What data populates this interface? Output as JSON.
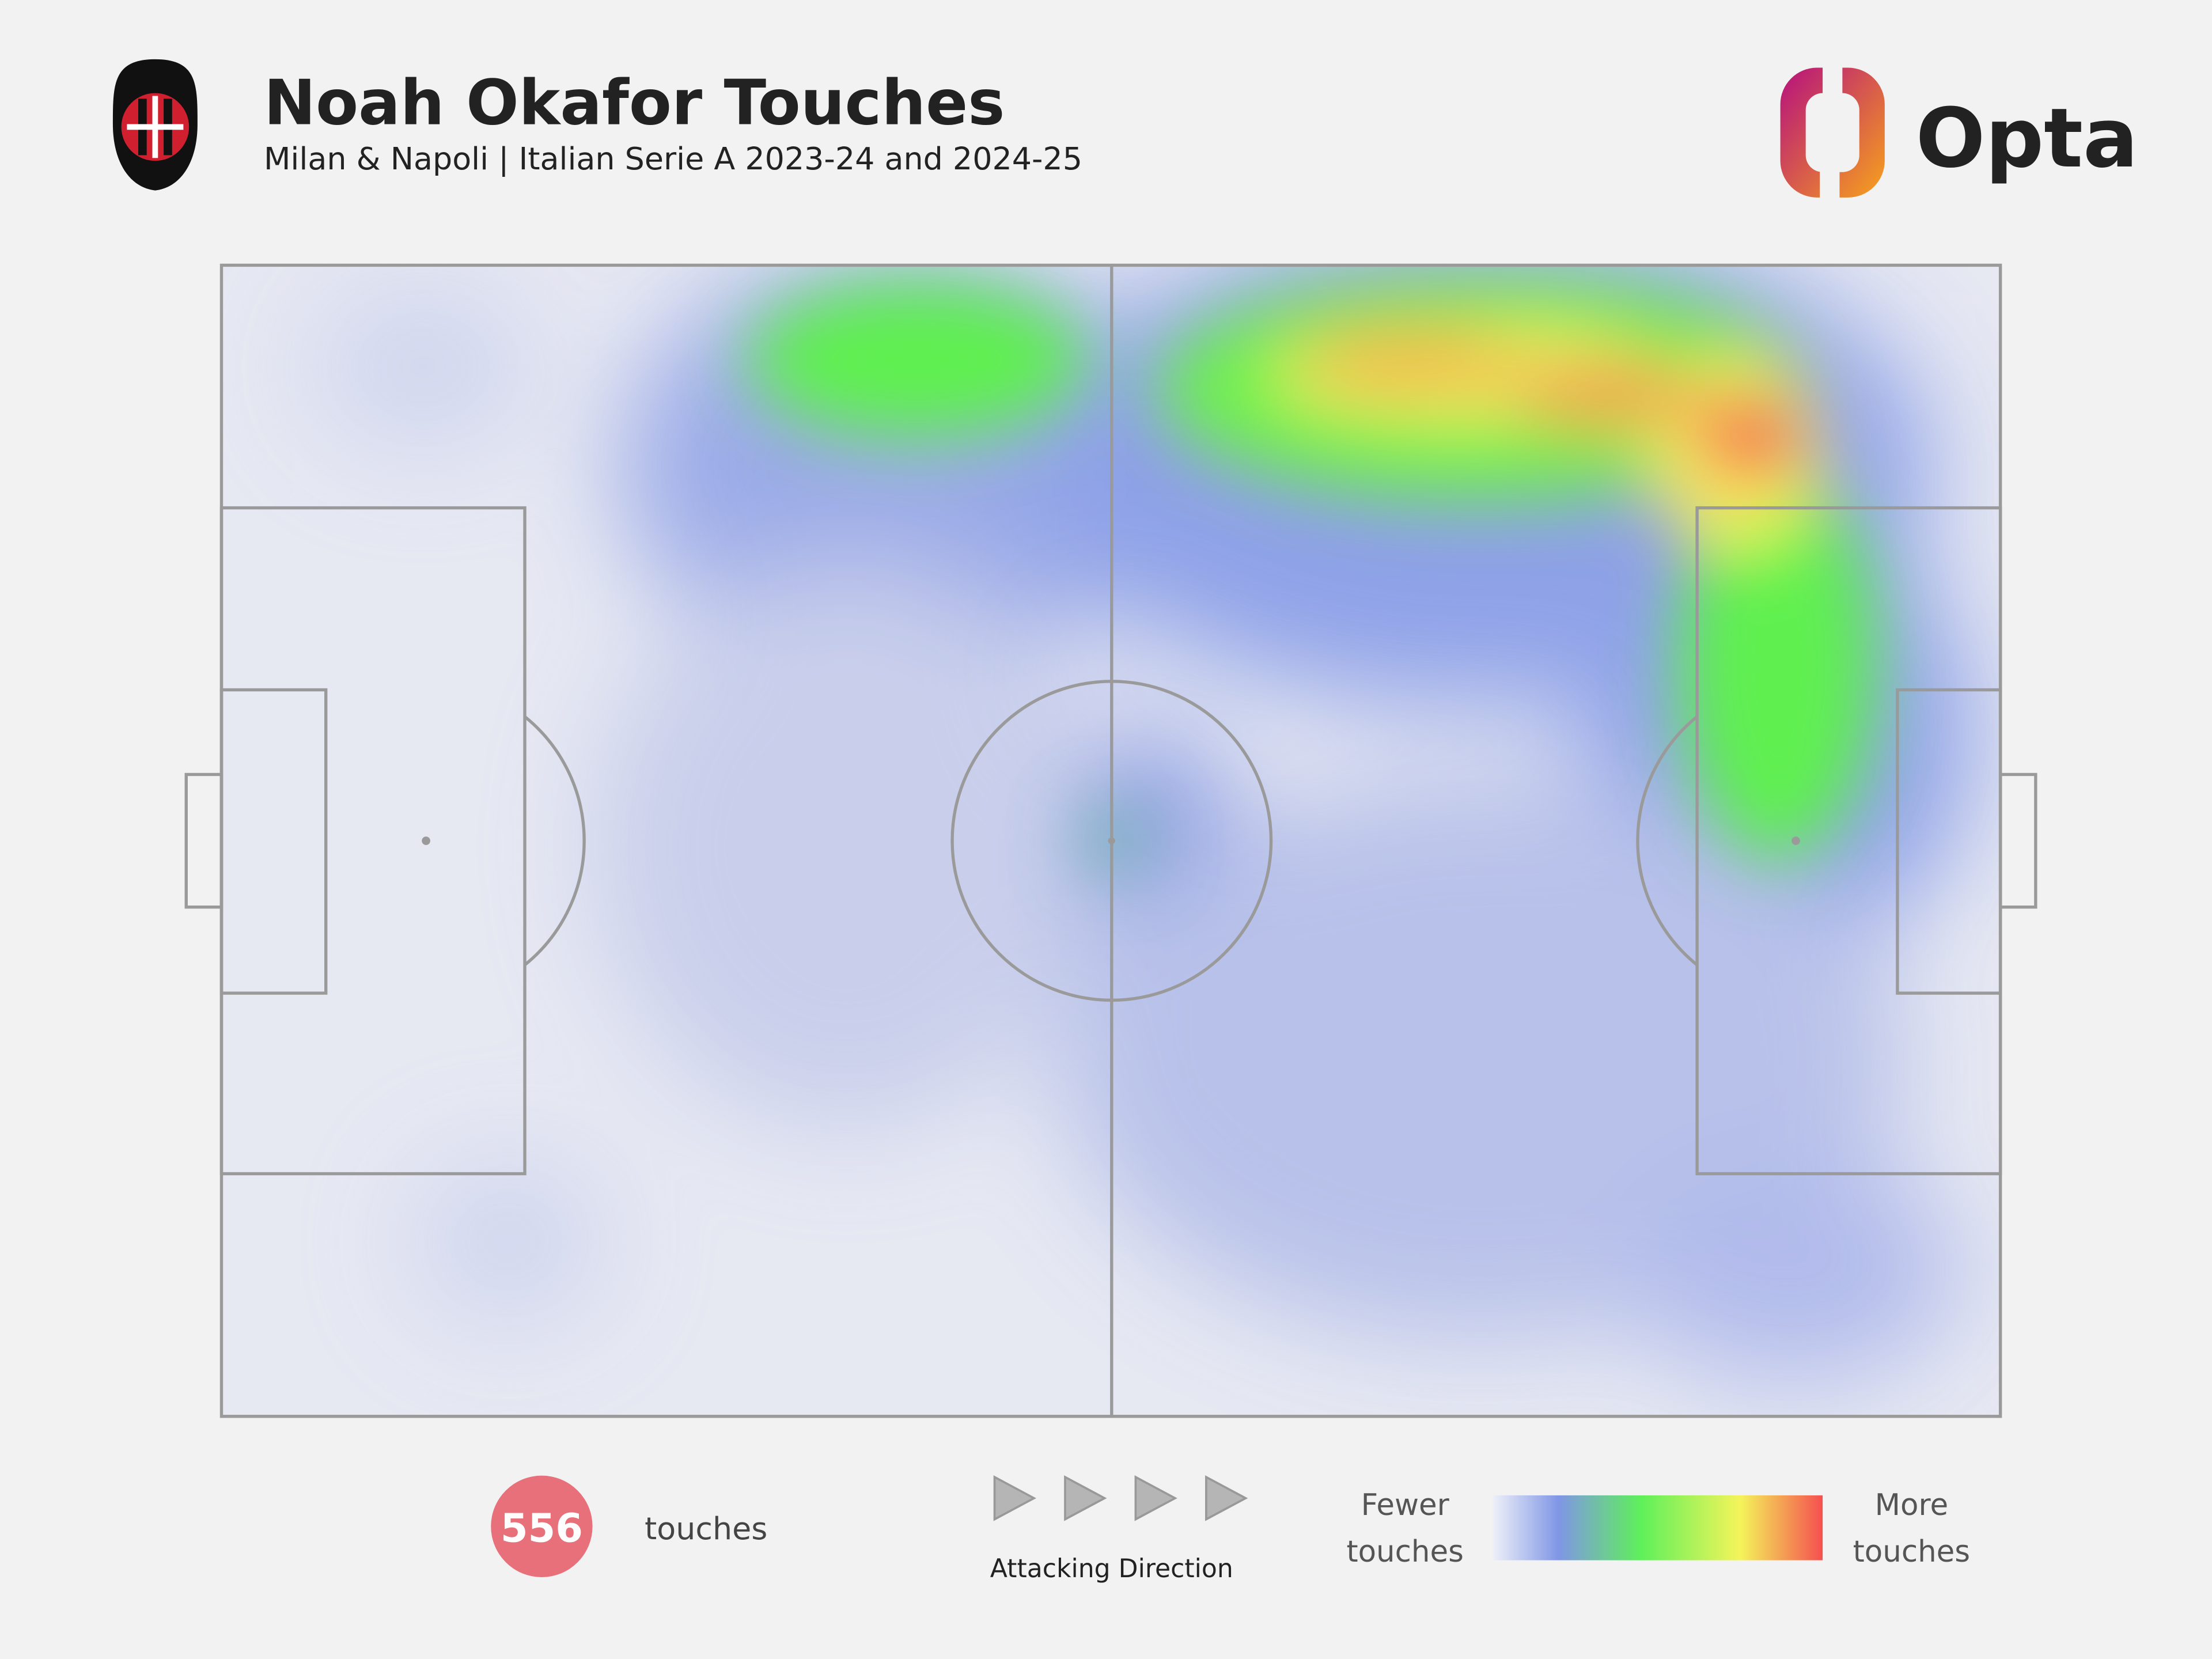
{
  "header": {
    "title": "Noah Okafor Touches",
    "subtitle": "Milan & Napoli | Italian Serie A 2023-24 and 2024-25",
    "brand": "Opta"
  },
  "stats": {
    "touches_value": 556,
    "touches_label": "touches"
  },
  "direction_label": "Attacking Direction",
  "legend": {
    "low": [
      "Fewer",
      "touches"
    ],
    "high": [
      "More",
      "touches"
    ]
  }
}
